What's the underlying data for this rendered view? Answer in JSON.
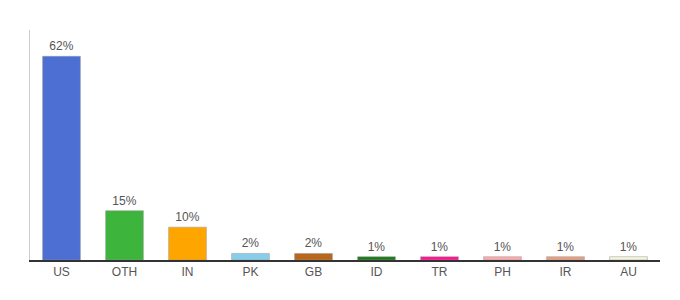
{
  "chart_data": {
    "type": "bar",
    "categories": [
      "US",
      "OTH",
      "IN",
      "PK",
      "GB",
      "ID",
      "TR",
      "PH",
      "IR",
      "AU"
    ],
    "values": [
      62,
      15,
      10,
      2,
      2,
      1,
      1,
      1,
      1,
      1
    ],
    "value_labels": [
      "62%",
      "15%",
      "10%",
      "2%",
      "2%",
      "1%",
      "1%",
      "1%",
      "1%",
      "1%"
    ],
    "colors": [
      "#4d6fd4",
      "#3db53d",
      "#ffa500",
      "#87ceeb",
      "#b8671a",
      "#1a7a1a",
      "#ff1493",
      "#ffaaaa",
      "#e8a080",
      "#f5f5dc"
    ],
    "ylim": [
      0,
      70
    ],
    "data_labels": true,
    "tick_labels": "x",
    "grid": false
  }
}
